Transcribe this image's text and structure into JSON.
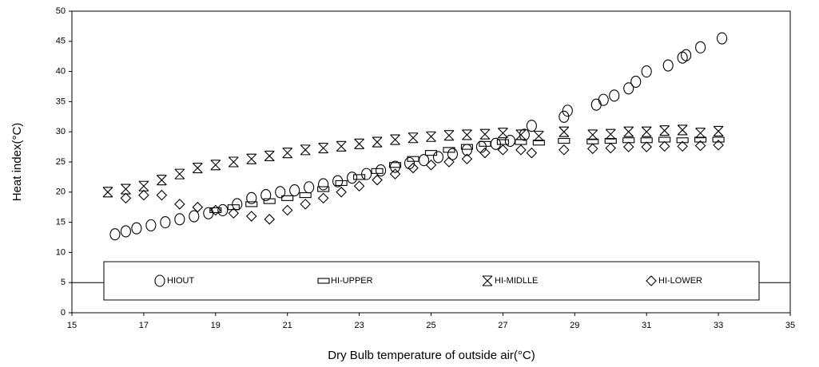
{
  "chart_data": {
    "type": "scatter",
    "xlabel": "Dry Bulb temperature of outside air(°C)",
    "ylabel": "Heat index(°C)",
    "xlim": [
      15,
      35
    ],
    "xticks": [
      15,
      17,
      19,
      21,
      23,
      25,
      27,
      29,
      31,
      33,
      35
    ],
    "ylim": [
      0,
      50
    ],
    "yticks": [
      0,
      5,
      10,
      15,
      20,
      25,
      30,
      35,
      40,
      45,
      50
    ],
    "hline": 5,
    "legend": "bottom",
    "series": [
      {
        "name": "HIOUT",
        "marker": "circle",
        "color": "#000000",
        "x": [
          16.2,
          16.5,
          16.8,
          17.2,
          17.6,
          18,
          18.4,
          18.8,
          19.2,
          19.6,
          20,
          20.4,
          20.8,
          21.2,
          21.6,
          22,
          22.4,
          22.8,
          23.2,
          23.6,
          24,
          24.4,
          24.8,
          25.2,
          25.6,
          26,
          26.4,
          26.8,
          27.2,
          27.6,
          27.8,
          28.7,
          28.8,
          29.6,
          29.8,
          30.1,
          30.5,
          30.7,
          31,
          31.6,
          32,
          32.1,
          32.5,
          33.1
        ],
        "values": [
          13,
          13.5,
          14,
          14.5,
          15,
          15.5,
          16,
          16.5,
          17,
          18,
          19,
          19.5,
          20,
          20.3,
          20.8,
          21.3,
          21.8,
          22.4,
          23,
          23.6,
          24.2,
          24.8,
          25.3,
          25.8,
          26.3,
          27,
          27.5,
          28,
          28.5,
          29.5,
          31,
          32.5,
          33.5,
          34.5,
          35.3,
          36,
          37.2,
          38.3,
          40,
          41,
          42.3,
          42.7,
          44,
          45.5
        ]
      },
      {
        "name": "HI-UPPER",
        "marker": "rect",
        "color": "#888888",
        "x": [
          19,
          19.5,
          20,
          20.5,
          21,
          21.5,
          22,
          22.5,
          23,
          23.5,
          24,
          24.5,
          25,
          25.5,
          26,
          26.5,
          27,
          27.5,
          28,
          28.7,
          29.5,
          30,
          30.5,
          31,
          31.5,
          32,
          32.5,
          33
        ],
        "values": [
          17,
          17.5,
          18,
          18.5,
          19,
          19.5,
          20.5,
          21.5,
          22.5,
          23.5,
          24.5,
          25.5,
          26.5,
          27,
          27.5,
          28,
          28.3,
          28.3,
          28.2,
          28.5,
          28.4,
          28.5,
          28.6,
          28.6,
          28.7,
          28.6,
          28.7,
          28.7
        ]
      },
      {
        "name": "HI-MIDLLE",
        "marker": "x",
        "color": "#000000",
        "x": [
          16,
          16.5,
          17,
          17.5,
          18,
          18.5,
          19,
          19.5,
          20,
          20.5,
          21,
          21.5,
          22,
          22.5,
          23,
          23.5,
          24,
          24.5,
          25,
          25.5,
          26,
          26.5,
          27,
          27.5,
          28,
          28.7,
          29.5,
          30,
          30.5,
          31,
          31.5,
          32,
          32.5,
          33
        ],
        "values": [
          20,
          20.5,
          21,
          22,
          23,
          24,
          24.5,
          25,
          25.5,
          26,
          26.5,
          27,
          27.3,
          27.6,
          28,
          28.3,
          28.7,
          29,
          29.2,
          29.4,
          29.5,
          29.6,
          29.8,
          29.5,
          29.3,
          30,
          29.5,
          29.6,
          30,
          30,
          30.2,
          30.3,
          29.8,
          30.1
        ]
      },
      {
        "name": "HI-LOWER",
        "marker": "diamond",
        "color": "#000000",
        "x": [
          16.5,
          17,
          17.5,
          18,
          18.5,
          19,
          19.5,
          20,
          20.5,
          21,
          21.5,
          22,
          22.5,
          23,
          23.5,
          24,
          24.5,
          25,
          25.5,
          26,
          26.5,
          27,
          27.5,
          27.8,
          28.7,
          29.5,
          30,
          30.5,
          31,
          31.5,
          32,
          32.5,
          33
        ],
        "values": [
          19,
          19.5,
          19.5,
          18,
          17.5,
          17,
          16.5,
          16,
          15.5,
          17,
          18,
          19,
          20,
          21,
          22,
          23,
          24,
          24.5,
          25,
          25.5,
          26.5,
          27,
          27,
          26.5,
          27,
          27.2,
          27.3,
          27.5,
          27.5,
          27.6,
          27.6,
          27.7,
          27.8
        ]
      }
    ]
  }
}
